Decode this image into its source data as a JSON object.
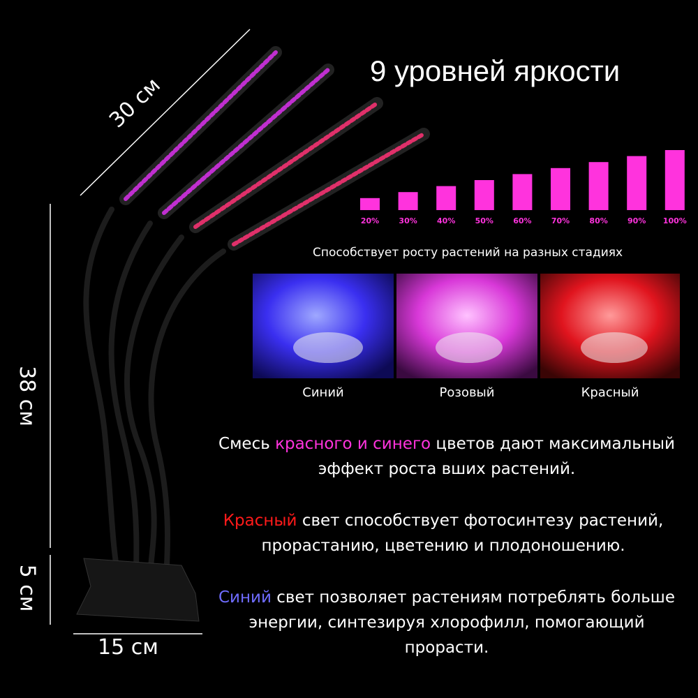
{
  "title": "9 уровней яркости",
  "brightness": {
    "levels": [
      {
        "value": 20,
        "label": "20%"
      },
      {
        "value": 30,
        "label": "30%"
      },
      {
        "value": 40,
        "label": "40%"
      },
      {
        "value": 50,
        "label": "50%"
      },
      {
        "value": 60,
        "label": "60%"
      },
      {
        "value": 70,
        "label": "70%"
      },
      {
        "value": 80,
        "label": "80%"
      },
      {
        "value": 90,
        "label": "90%"
      },
      {
        "value": 100,
        "label": "100%"
      }
    ],
    "color": "#ff33dd"
  },
  "stages": {
    "caption": "Способствует росту растений на разных стадиях",
    "panels": [
      "Синий",
      "Розовый",
      "Красный"
    ]
  },
  "dimensions": {
    "length": "30 см",
    "height": "38 см",
    "clip_height": "5 см",
    "width": "15 см"
  },
  "paragraphs": [
    [
      {
        "text": "Смесь "
      },
      {
        "text": "красного и синего",
        "color": "#ff33dd"
      },
      {
        "text": " цветов дают максимальный эффект роста вших растений."
      }
    ],
    [
      {
        "text": "Красный",
        "color": "#ff1a1a"
      },
      {
        "text": " свет способствует фотосинтезу растений, прорастанию, цветению и плодоношению."
      }
    ],
    [
      {
        "text": "Синий",
        "color": "#6f6cff"
      },
      {
        "text": " свет позволяет растениям потреблять больше энергии, синтезируя хлорофилл, помогающий прорасти."
      }
    ]
  ]
}
